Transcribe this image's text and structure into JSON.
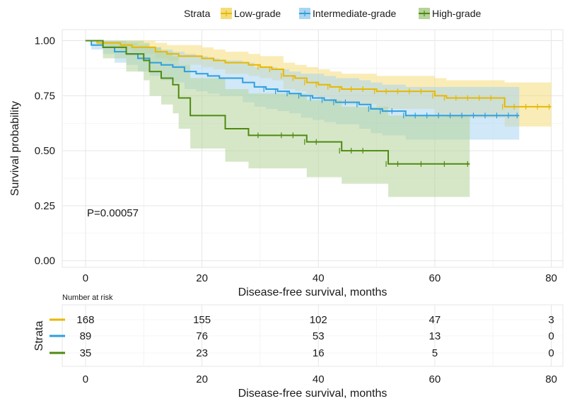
{
  "chart_data": {
    "type": "line",
    "subtype": "kaplan-meier",
    "xlabel": "Disease-free survival, months",
    "ylabel": "Survival probability",
    "xlim": [
      -4,
      82
    ],
    "ylim": [
      -0.03,
      1.05
    ],
    "xticks": [
      0,
      20,
      40,
      60,
      80
    ],
    "yticks": [
      0.0,
      0.25,
      0.5,
      0.75,
      1.0
    ],
    "ytick_labels": [
      "0.00",
      "0.25",
      "0.50",
      "0.75",
      "1.00"
    ],
    "grid": true,
    "annotation": "P=0.00057",
    "legend": {
      "title": "Strata",
      "position": "top"
    },
    "series": [
      {
        "name": "Low-grade",
        "color": "#E7B800",
        "ci_color": "#F5DC7A",
        "x": [
          0,
          2,
          4,
          6,
          8,
          10,
          12,
          14,
          16,
          18,
          20,
          22,
          24,
          26,
          28,
          30,
          32,
          34,
          36,
          38,
          40,
          42,
          44,
          46,
          48,
          50,
          52,
          54,
          56,
          58,
          60,
          62,
          64,
          66,
          68,
          70,
          72,
          74,
          76,
          78,
          80
        ],
        "y": [
          1.0,
          0.99,
          0.99,
          0.98,
          0.97,
          0.97,
          0.95,
          0.94,
          0.93,
          0.93,
          0.92,
          0.91,
          0.9,
          0.9,
          0.89,
          0.88,
          0.87,
          0.84,
          0.83,
          0.81,
          0.8,
          0.79,
          0.78,
          0.78,
          0.78,
          0.77,
          0.77,
          0.77,
          0.77,
          0.77,
          0.75,
          0.74,
          0.74,
          0.74,
          0.74,
          0.74,
          0.7,
          0.7,
          0.7,
          0.7,
          0.7
        ],
        "lower": [
          1.0,
          0.98,
          0.97,
          0.96,
          0.95,
          0.94,
          0.92,
          0.91,
          0.89,
          0.89,
          0.88,
          0.87,
          0.85,
          0.85,
          0.84,
          0.83,
          0.82,
          0.78,
          0.77,
          0.75,
          0.74,
          0.72,
          0.71,
          0.71,
          0.71,
          0.69,
          0.69,
          0.69,
          0.69,
          0.69,
          0.66,
          0.65,
          0.65,
          0.65,
          0.65,
          0.65,
          0.61,
          0.61,
          0.61,
          0.61,
          0.61
        ],
        "upper": [
          1.0,
          1.0,
          1.0,
          1.0,
          1.0,
          1.0,
          0.99,
          0.98,
          0.98,
          0.98,
          0.97,
          0.96,
          0.95,
          0.95,
          0.94,
          0.93,
          0.93,
          0.9,
          0.89,
          0.88,
          0.87,
          0.86,
          0.85,
          0.85,
          0.85,
          0.84,
          0.84,
          0.84,
          0.84,
          0.84,
          0.83,
          0.82,
          0.82,
          0.82,
          0.82,
          0.82,
          0.81,
          0.81,
          0.81,
          0.81,
          0.81
        ]
      },
      {
        "name": "Intermediate-grade",
        "color": "#2E9FDF",
        "ci_color": "#A9D5F0",
        "x": [
          0,
          1,
          3,
          5,
          7,
          9,
          11,
          13,
          15,
          17,
          19,
          21,
          23,
          25,
          27,
          29,
          31,
          33,
          35,
          37,
          39,
          41,
          43,
          45,
          47,
          49,
          51,
          53,
          55,
          57,
          59,
          61,
          63,
          65,
          67,
          69,
          71,
          73,
          74.5
        ],
        "y": [
          1.0,
          0.98,
          0.97,
          0.95,
          0.94,
          0.92,
          0.9,
          0.89,
          0.88,
          0.86,
          0.85,
          0.84,
          0.83,
          0.83,
          0.81,
          0.79,
          0.78,
          0.77,
          0.76,
          0.75,
          0.74,
          0.73,
          0.72,
          0.72,
          0.71,
          0.69,
          0.68,
          0.68,
          0.66,
          0.66,
          0.66,
          0.66,
          0.66,
          0.66,
          0.66,
          0.66,
          0.66,
          0.66,
          0.66
        ],
        "lower": [
          1.0,
          0.96,
          0.94,
          0.9,
          0.89,
          0.86,
          0.84,
          0.82,
          0.81,
          0.78,
          0.77,
          0.76,
          0.75,
          0.75,
          0.72,
          0.7,
          0.69,
          0.68,
          0.67,
          0.65,
          0.64,
          0.63,
          0.62,
          0.62,
          0.6,
          0.58,
          0.57,
          0.57,
          0.55,
          0.55,
          0.55,
          0.55,
          0.55,
          0.55,
          0.55,
          0.55,
          0.55,
          0.55,
          0.55
        ],
        "upper": [
          1.0,
          1.0,
          1.0,
          1.0,
          0.99,
          0.98,
          0.97,
          0.96,
          0.95,
          0.94,
          0.93,
          0.92,
          0.91,
          0.91,
          0.9,
          0.88,
          0.88,
          0.87,
          0.86,
          0.85,
          0.85,
          0.84,
          0.83,
          0.83,
          0.82,
          0.81,
          0.8,
          0.8,
          0.79,
          0.79,
          0.79,
          0.79,
          0.79,
          0.79,
          0.79,
          0.79,
          0.79,
          0.79,
          0.79
        ]
      },
      {
        "name": "High-grade",
        "color": "#4F8A10",
        "ci_color": "#B5D39A",
        "x": [
          0,
          3,
          7,
          10,
          11,
          13,
          15,
          16,
          18,
          20,
          22,
          24,
          26,
          28,
          30,
          34,
          36,
          38,
          40,
          44,
          46,
          48,
          52,
          54,
          58,
          62,
          66
        ],
        "y": [
          1.0,
          0.97,
          0.94,
          0.91,
          0.86,
          0.83,
          0.8,
          0.74,
          0.66,
          0.66,
          0.66,
          0.6,
          0.6,
          0.57,
          0.57,
          0.57,
          0.57,
          0.54,
          0.54,
          0.5,
          0.5,
          0.5,
          0.44,
          0.44,
          0.44,
          0.44,
          0.44
        ],
        "lower": [
          1.0,
          0.92,
          0.86,
          0.82,
          0.75,
          0.71,
          0.67,
          0.6,
          0.51,
          0.51,
          0.51,
          0.45,
          0.45,
          0.42,
          0.42,
          0.42,
          0.42,
          0.38,
          0.38,
          0.35,
          0.35,
          0.35,
          0.29,
          0.29,
          0.29,
          0.29,
          0.29
        ],
        "upper": [
          1.0,
          1.0,
          1.0,
          0.99,
          0.97,
          0.95,
          0.93,
          0.89,
          0.83,
          0.83,
          0.83,
          0.78,
          0.78,
          0.76,
          0.76,
          0.76,
          0.76,
          0.73,
          0.73,
          0.7,
          0.7,
          0.7,
          0.66,
          0.66,
          0.66,
          0.66,
          0.66
        ]
      }
    ],
    "risk_table": {
      "title": "Number at risk",
      "ylabel": "Strata",
      "xlabel": "Disease-free survival, months",
      "times": [
        0,
        20,
        40,
        60,
        80
      ],
      "rows": [
        {
          "name": "Low-grade",
          "values": [
            168,
            155,
            102,
            47,
            3
          ]
        },
        {
          "name": "Intermediate-grade",
          "values": [
            89,
            76,
            53,
            13,
            0
          ]
        },
        {
          "name": "High-grade",
          "values": [
            35,
            23,
            16,
            5,
            0
          ]
        }
      ]
    }
  }
}
